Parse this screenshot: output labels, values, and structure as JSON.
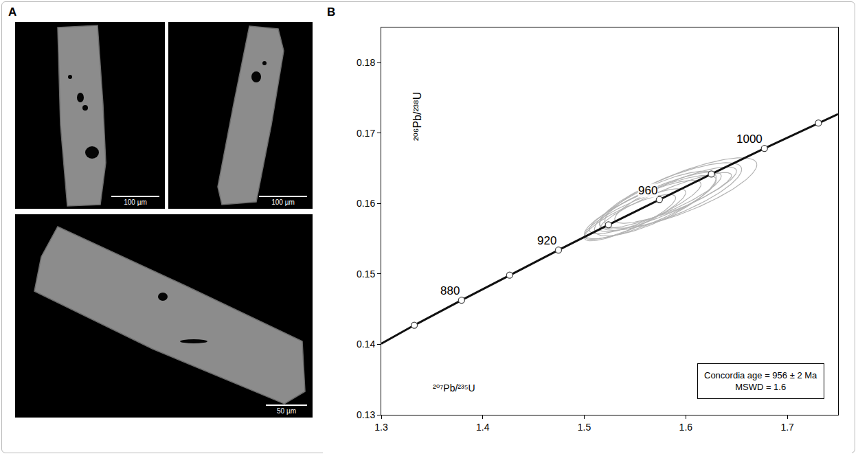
{
  "panel_a": {
    "label": "A",
    "images": [
      {
        "scale_bar": "100 µm"
      },
      {
        "scale_bar": "100 µm"
      },
      {
        "scale_bar": "50 µm"
      }
    ]
  },
  "chart_data": {
    "panel_label": "B",
    "type": "scatter",
    "x_label": "²⁰⁷Pb/²³⁵U",
    "y_label": "²⁰⁶Pb/²³⁸U",
    "xlim": [
      1.3,
      1.75
    ],
    "ylim": [
      0.13,
      0.185
    ],
    "xticks": [
      1.3,
      1.4,
      1.5,
      1.6,
      1.7
    ],
    "yticks": [
      0.13,
      0.14,
      0.15,
      0.16,
      0.17,
      0.18
    ],
    "grid": false,
    "concordia_line": {
      "color": "#111111",
      "x": [
        1.3,
        1.33254,
        1.37905,
        1.42644,
        1.47455,
        1.52379,
        1.574,
        1.62519,
        1.67742,
        1.73063,
        1.75
      ],
      "y": [
        0.1401,
        0.14272,
        0.14627,
        0.14983,
        0.15339,
        0.15698,
        0.16057,
        0.16419,
        0.16782,
        0.17143,
        0.1727
      ]
    },
    "age_markers": {
      "ages": [
        860,
        880,
        900,
        920,
        940,
        960,
        980,
        1000,
        1020
      ],
      "x": [
        1.33254,
        1.37905,
        1.42644,
        1.47455,
        1.52379,
        1.574,
        1.62519,
        1.67742,
        1.73063
      ],
      "y": [
        0.14272,
        0.14627,
        0.14983,
        0.15339,
        0.15698,
        0.16057,
        0.16419,
        0.16782,
        0.17143
      ],
      "labeled_ages": [
        880,
        920,
        960,
        1000
      ]
    },
    "ellipses": {
      "color": "#b3b3b3",
      "x": [
        1.565,
        1.575,
        1.585,
        1.56,
        1.595,
        1.55,
        1.58,
        1.57,
        1.59,
        1.545
      ],
      "y": [
        0.1595,
        0.1605,
        0.161,
        0.1595,
        0.1615,
        0.1585,
        0.1602,
        0.16,
        0.1612,
        0.158
      ],
      "x_err": [
        0.065,
        0.06,
        0.07,
        0.055,
        0.075,
        0.05,
        0.065,
        0.06,
        0.06,
        0.045
      ],
      "y_err": [
        0.0045,
        0.004,
        0.0048,
        0.0038,
        0.005,
        0.0036,
        0.0042,
        0.0046,
        0.004,
        0.0033
      ],
      "rho": [
        0.85,
        0.85,
        0.8,
        0.85,
        0.8,
        0.85,
        0.9,
        0.8,
        0.85,
        0.85
      ]
    },
    "summary": [
      "Concordia age = 956 ± 2 Ma",
      "MSWD = 1.6"
    ]
  }
}
